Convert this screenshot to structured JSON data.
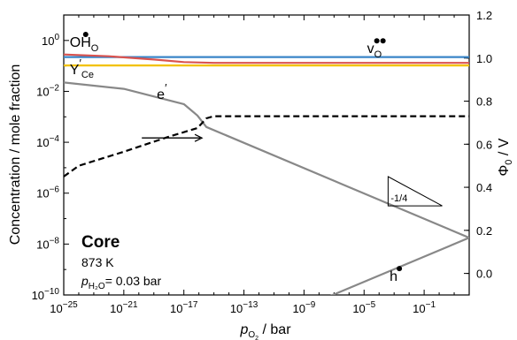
{
  "chart_data": {
    "type": "line",
    "xlabel": {
      "main": "p",
      "sub": "O",
      "sub2": "2",
      "rest": " / bar"
    },
    "ylabel_left": "Concentration / mole fraction",
    "ylabel_right": {
      "main": "Φ",
      "sub": "0",
      "rest": " / V"
    },
    "x_log_range": [
      -25,
      2
    ],
    "y_left_log_range": [
      -10,
      1
    ],
    "y_right_range": [
      -0.1,
      1.2
    ],
    "x_ticks": [
      {
        "exp": -25,
        "label": "10",
        "sup": "−25"
      },
      {
        "exp": -21,
        "label": "10",
        "sup": "−21"
      },
      {
        "exp": -17,
        "label": "10",
        "sup": "−17"
      },
      {
        "exp": -13,
        "label": "10",
        "sup": "−13"
      },
      {
        "exp": -9,
        "label": "10",
        "sup": "−9"
      },
      {
        "exp": -5,
        "label": "10",
        "sup": "−5"
      },
      {
        "exp": -1,
        "label": "10",
        "sup": "−1"
      }
    ],
    "y_left_ticks": [
      {
        "exp": 0,
        "label": "10",
        "sup": "0"
      },
      {
        "exp": -2,
        "label": "10",
        "sup": "−2"
      },
      {
        "exp": -4,
        "label": "10",
        "sup": "−4"
      },
      {
        "exp": -6,
        "label": "10",
        "sup": "−6"
      },
      {
        "exp": -8,
        "label": "10",
        "sup": "−8"
      },
      {
        "exp": -10,
        "label": "10",
        "sup": "−10"
      }
    ],
    "y_right_ticks": [
      "0.0",
      "0.2",
      "0.4",
      "0.6",
      "0.8",
      "1.0",
      "1.2"
    ],
    "series": [
      {
        "key": "vo",
        "color": "#3a86c8",
        "axis": "left",
        "style": "solid",
        "points": [
          [
            -25,
            -0.65
          ],
          [
            2,
            -0.65
          ]
        ]
      },
      {
        "key": "ohO",
        "color": "#d9534f",
        "axis": "left",
        "style": "solid",
        "points": [
          [
            -25,
            -0.55
          ],
          [
            -22,
            -0.62
          ],
          [
            -19,
            -0.75
          ],
          [
            -17,
            -0.85
          ],
          [
            -15,
            -0.88
          ],
          [
            2,
            -0.88
          ]
        ]
      },
      {
        "key": "yce",
        "color": "#f2c200",
        "axis": "left",
        "style": "solid",
        "points": [
          [
            -25,
            -0.98
          ],
          [
            2,
            -0.98
          ]
        ]
      },
      {
        "key": "e",
        "color": "#888888",
        "axis": "left",
        "style": "solid",
        "points": [
          [
            -25,
            -1.65
          ],
          [
            -21,
            -1.9
          ],
          [
            -17,
            -2.5
          ],
          [
            -16.1,
            -2.95
          ],
          [
            -15.5,
            -3.4
          ],
          [
            2,
            -7.75
          ]
        ]
      },
      {
        "key": "h",
        "color": "#888888",
        "axis": "left",
        "style": "solid",
        "points": [
          [
            -7.5,
            -10.1
          ],
          [
            2,
            -7.75
          ]
        ]
      },
      {
        "key": "phi",
        "color": "#000000",
        "axis": "right",
        "style": "dashed",
        "points": [
          [
            -25,
            0.45
          ],
          [
            -24,
            0.5
          ],
          [
            -21,
            0.565
          ],
          [
            -18,
            0.635
          ],
          [
            -16.1,
            0.675
          ],
          [
            -15.5,
            0.72
          ],
          [
            -15,
            0.73
          ],
          [
            2,
            0.73
          ]
        ]
      }
    ],
    "series_labels": [
      {
        "key": "vo",
        "text": "v",
        "sub": "O",
        "dots": 2,
        "at": [
          -4.8,
          -0.5
        ]
      },
      {
        "key": "ohO",
        "text": "OH",
        "sub": "O",
        "dots": 1,
        "at": [
          -24.6,
          -0.25
        ]
      },
      {
        "key": "yce",
        "text": "Y",
        "sub": "Ce",
        "prime": true,
        "at": [
          -24.6,
          -1.32
        ]
      },
      {
        "key": "e",
        "text": "e",
        "prime": true,
        "at": [
          -18.8,
          -2.3
        ]
      },
      {
        "key": "h",
        "text": "h",
        "dots": 1,
        "at": [
          -3.3,
          -9.45
        ]
      }
    ],
    "slope_annotation": {
      "text": "-1/4",
      "triangle": [
        [
          -3.4,
          -5.35
        ],
        [
          -3.4,
          -6.5
        ],
        [
          0.2,
          -6.5
        ]
      ]
    },
    "arrow": {
      "from": [
        -19.8,
        -3.83
      ],
      "to": [
        -15.8,
        -3.83
      ]
    },
    "annotation": {
      "title": "Core",
      "temperature": "873 K",
      "pressure": {
        "main": "p",
        "sub": "H₂O",
        "rest": "= 0.03 bar"
      }
    }
  }
}
